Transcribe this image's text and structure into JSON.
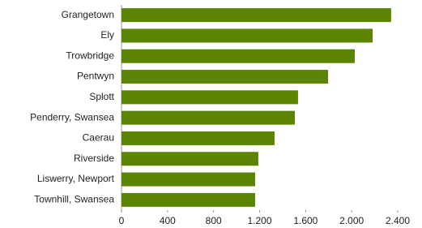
{
  "chart_data": {
    "type": "barh",
    "categories": [
      "Grangetown",
      "Ely",
      "Trowbridge",
      "Pentwyn",
      "Splott",
      "Penderry, Swansea",
      "Caerau",
      "Riverside",
      "Liswerry, Newport",
      "Townhill, Swansea"
    ],
    "values": [
      2343,
      2182,
      2027,
      1795,
      1534,
      1506,
      1330,
      1189,
      1161,
      1161
    ],
    "color": "#5b8400",
    "xlim": [
      0,
      2400
    ],
    "xticks": [
      0,
      400,
      800,
      {
        "value": 1200,
        "label": "1.200"
      },
      {
        "value": 1600,
        "label": "1.600"
      },
      {
        "value": 2000,
        "label": "2.000"
      },
      {
        "value": 2400,
        "label": "2.400"
      }
    ]
  }
}
